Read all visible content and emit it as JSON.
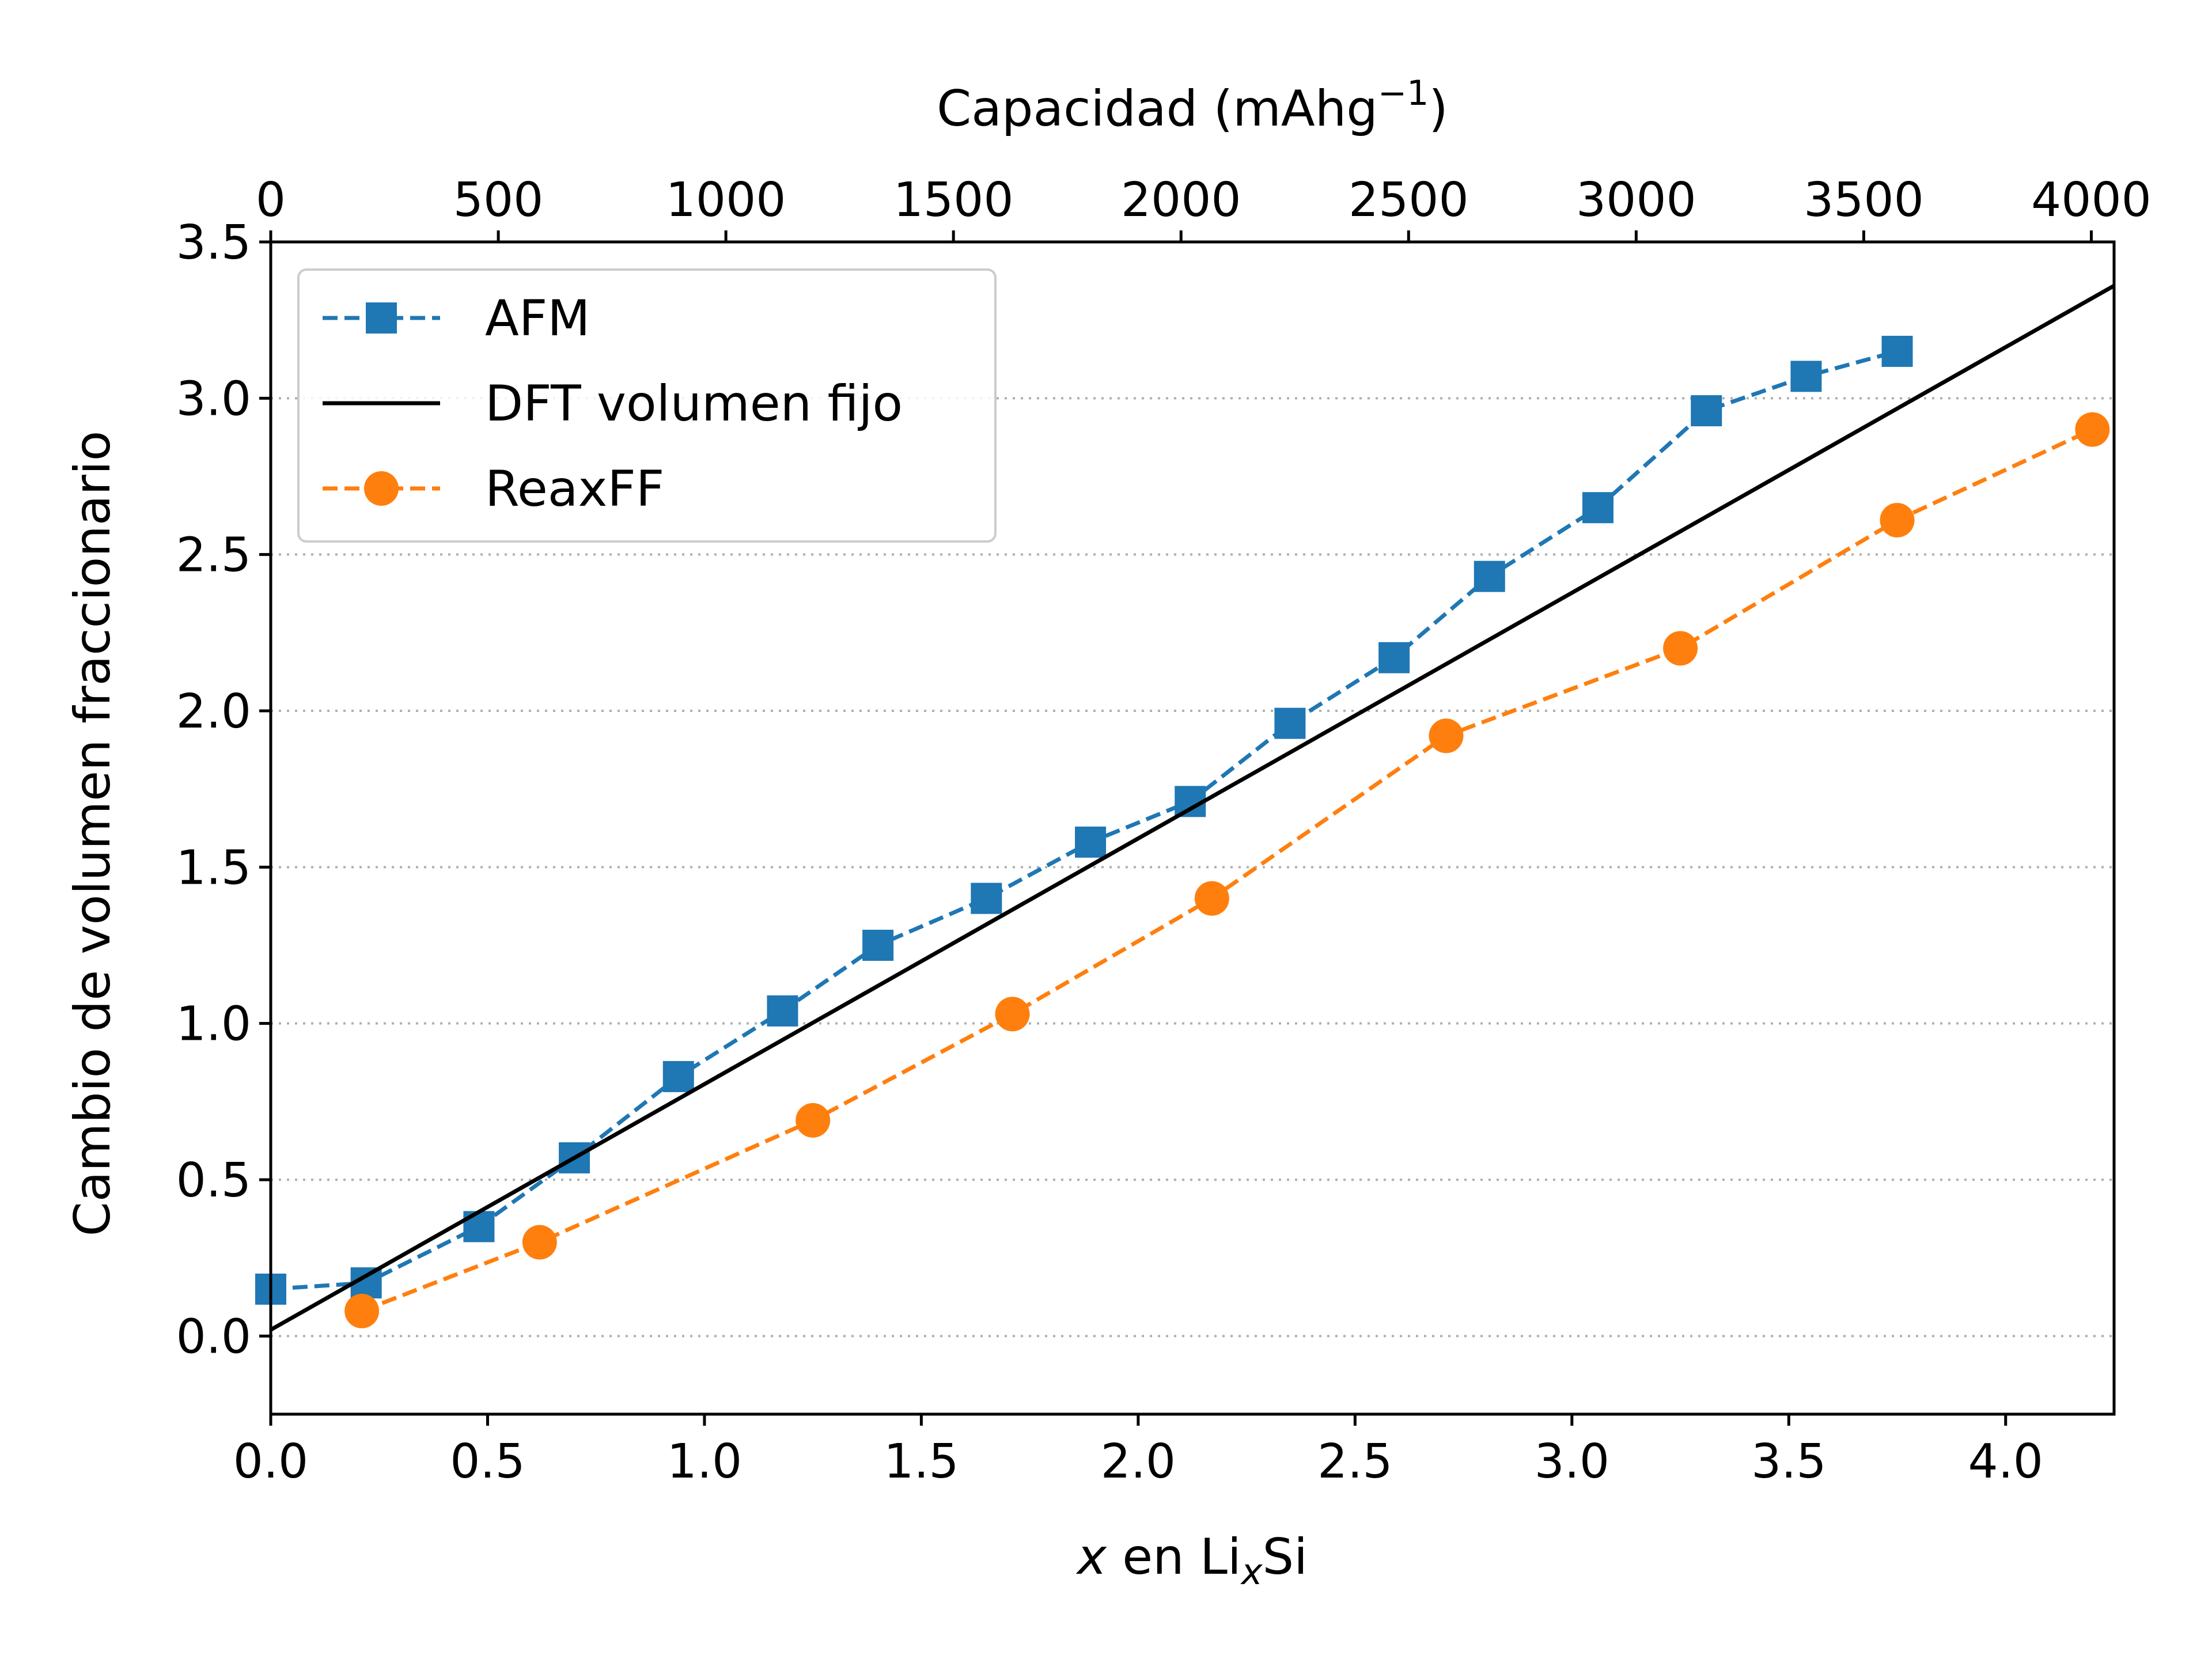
{
  "chart_data": {
    "type": "line",
    "xlabel_prefix": "x",
    "xlabel_mid": " en Li",
    "xlabel_sub": "x",
    "xlabel_suffix": "Si",
    "ylabel": "Cambio de volumen fraccionario",
    "top_xlabel": "Capacidad (mAhg",
    "top_xlabel_sup": "−1",
    "top_xlabel_end": ")",
    "xlim": [
      0,
      4.25
    ],
    "ylim": [
      -0.25,
      3.5
    ],
    "top_xlim": [
      0,
      4050
    ],
    "x_ticks": [
      "0.0",
      "0.5",
      "1.0",
      "1.5",
      "2.0",
      "2.5",
      "3.0",
      "3.5",
      "4.0"
    ],
    "y_ticks": [
      "0.0",
      "0.5",
      "1.0",
      "1.5",
      "2.0",
      "2.5",
      "3.0",
      "3.5"
    ],
    "top_ticks": [
      "0",
      "500",
      "1000",
      "1500",
      "2000",
      "2500",
      "3000",
      "3500",
      "4000"
    ],
    "grid": "horizontal dotted",
    "legend_position": "upper-left",
    "series": [
      {
        "name": "AFM",
        "style": "dashed",
        "marker": "square",
        "color": "#1f77b4",
        "x": [
          0.0,
          0.22,
          0.48,
          0.7,
          0.94,
          1.18,
          1.4,
          1.65,
          1.89,
          2.12,
          2.35,
          2.59,
          2.81,
          3.06,
          3.31,
          3.54,
          3.75
        ],
        "y": [
          0.15,
          0.17,
          0.35,
          0.57,
          0.83,
          1.04,
          1.25,
          1.4,
          1.58,
          1.71,
          1.96,
          2.17,
          2.43,
          2.65,
          2.96,
          3.07,
          3.15
        ]
      },
      {
        "name": "DFT volumen fijo",
        "style": "solid",
        "marker": "none",
        "color": "#000000",
        "x": [
          0.0,
          4.25
        ],
        "y": [
          0.02,
          3.36
        ]
      },
      {
        "name": "ReaxFF",
        "style": "dashed",
        "marker": "circle",
        "color": "#ff7f0e",
        "x": [
          0.21,
          0.62,
          1.25,
          1.71,
          2.17,
          2.71,
          3.25,
          3.75,
          4.2
        ],
        "y": [
          0.08,
          0.3,
          0.69,
          1.03,
          1.4,
          1.92,
          2.2,
          2.61,
          2.9
        ]
      }
    ]
  }
}
